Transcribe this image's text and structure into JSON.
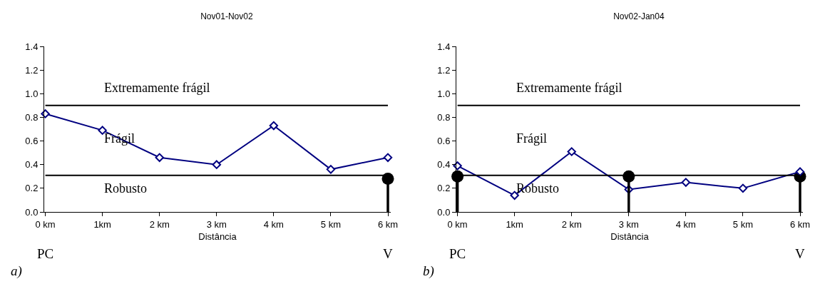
{
  "chart_data": [
    {
      "type": "line",
      "title": "Nov01-Nov02",
      "xlabel": "Distância",
      "categories": [
        "0 km",
        "1km",
        "2 km",
        "3 km",
        "4 km",
        "5 km",
        "6 km"
      ],
      "series": [
        {
          "color": "#000080",
          "marker": "diamond",
          "values": [
            0.83,
            0.69,
            0.46,
            0.4,
            0.73,
            0.36,
            0.46
          ]
        },
        {
          "type": "lollipop",
          "color": "#000000",
          "marker": "circle",
          "values": [
            null,
            null,
            null,
            null,
            null,
            null,
            0.28
          ]
        }
      ],
      "ylim": [
        0,
        1.4
      ],
      "yticks": [
        {
          "value": 0,
          "label": "0.0"
        },
        {
          "value": 0.2,
          "label": "0.2"
        },
        {
          "value": 0.4,
          "label": "0.4"
        },
        {
          "value": 0.6,
          "label": "0.6"
        },
        {
          "value": 0.8,
          "label": "0.8"
        },
        {
          "value": 1,
          "label": "1.0"
        },
        {
          "value": 1.2,
          "label": "1.2"
        },
        {
          "value": 1.4,
          "label": "1.4"
        }
      ],
      "ref_lines": [
        {
          "axis": "y",
          "value": 0.9,
          "color": "#000000"
        },
        {
          "axis": "y",
          "value": 0.31,
          "color": "#000000"
        }
      ],
      "annotations": [
        "Extremamente frágil",
        "Frágil",
        "Robusto",
        "PC",
        "V",
        "a)"
      ],
      "grid": false
    },
    {
      "type": "line",
      "title": "Nov02-Jan04",
      "xlabel": "Distância",
      "categories": [
        "0 km",
        "1km",
        "2 km",
        "3 km",
        "4 km",
        "5 km",
        "6 km"
      ],
      "series": [
        {
          "color": "#000080",
          "marker": "diamond",
          "values": [
            0.39,
            0.14,
            0.51,
            0.19,
            0.25,
            0.2,
            0.34
          ]
        },
        {
          "type": "lollipop",
          "color": "#000000",
          "marker": "circle",
          "values": [
            0.3,
            null,
            null,
            0.3,
            null,
            null,
            0.3
          ]
        }
      ],
      "ylim": [
        0,
        1.4
      ],
      "yticks": [
        {
          "value": 0,
          "label": "0.0"
        },
        {
          "value": 0.2,
          "label": "0.2"
        },
        {
          "value": 0.4,
          "label": "0.4"
        },
        {
          "value": 0.6,
          "label": "0.6"
        },
        {
          "value": 0.8,
          "label": "0.8"
        },
        {
          "value": 1,
          "label": "1.0"
        },
        {
          "value": 1.2,
          "label": "1.2"
        },
        {
          "value": 1.4,
          "label": "1.4"
        }
      ],
      "ref_lines": [
        {
          "axis": "y",
          "value": 0.9,
          "color": "#000000"
        },
        {
          "axis": "y",
          "value": 0.31,
          "color": "#000000"
        }
      ],
      "annotations": [
        "Extremamente frágil",
        "Frágil",
        "Robusto",
        "PC",
        "V",
        "b)"
      ],
      "grid": false
    }
  ]
}
